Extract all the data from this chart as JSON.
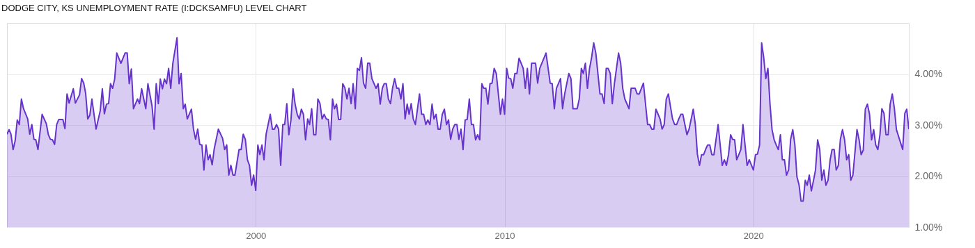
{
  "chart_data": {
    "type": "area",
    "title": "DODGE CITY, KS UNEMPLOYMENT RATE (I:DCKSAMFU) LEVEL CHART",
    "x": [
      "1990-01",
      "1990-02",
      "1990-03",
      "1990-04",
      "1990-05",
      "1990-06",
      "1990-07",
      "1990-08",
      "1990-09",
      "1990-11",
      "1990-12",
      "1991-01",
      "1991-02",
      "1991-03",
      "1991-04",
      "1991-06",
      "1991-08",
      "1991-09",
      "1991-10",
      "1991-11",
      "1991-12",
      "1992-01",
      "1992-02",
      "1992-04",
      "1992-05",
      "1992-06",
      "1992-07",
      "1992-09",
      "1992-10",
      "1992-12",
      "1993-01",
      "1993-02",
      "1993-03",
      "1993-04",
      "1993-05",
      "1993-06",
      "1993-08",
      "1993-10",
      "1993-11",
      "1993-12",
      "1994-01",
      "1994-02",
      "1994-03",
      "1994-04",
      "1994-05",
      "1994-06",
      "1994-08",
      "1994-10",
      "1994-11",
      "1994-12",
      "1995-01",
      "1995-02",
      "1995-04",
      "1995-05",
      "1995-06",
      "1995-08",
      "1995-09",
      "1995-11",
      "1995-12",
      "1996-01",
      "1996-02",
      "1996-03",
      "1996-04",
      "1996-05",
      "1996-06",
      "1996-07",
      "1996-08",
      "1996-09",
      "1996-11",
      "1996-12",
      "1997-01",
      "1997-02",
      "1997-03",
      "1997-04",
      "1997-06",
      "1997-07",
      "1997-08",
      "1997-09",
      "1997-10",
      "1997-11",
      "1997-12",
      "1998-01",
      "1998-02",
      "1998-03",
      "1998-04",
      "1998-05",
      "1998-07",
      "1998-09",
      "1998-10",
      "1998-11",
      "1998-12",
      "1999-01",
      "1999-02",
      "1999-03",
      "1999-05",
      "1999-06",
      "1999-07",
      "1999-08",
      "1999-09",
      "1999-10",
      "1999-11",
      "1999-12",
      "2000-01",
      "2000-02",
      "2000-03",
      "2000-04",
      "2000-05",
      "2000-06",
      "2000-08",
      "2000-09",
      "2000-10",
      "2000-11",
      "2000-12",
      "2001-01",
      "2001-02",
      "2001-03",
      "2001-04",
      "2001-05",
      "2001-06",
      "2001-07",
      "2001-08",
      "2001-09",
      "2001-10",
      "2001-11",
      "2001-12",
      "2002-01",
      "2002-02",
      "2002-03",
      "2002-04",
      "2002-05",
      "2002-06",
      "2002-07",
      "2002-08",
      "2002-09",
      "2002-10",
      "2002-11",
      "2002-12",
      "2003-01",
      "2003-02",
      "2003-03",
      "2003-04",
      "2003-05",
      "2003-06",
      "2003-07",
      "2003-08",
      "2003-09",
      "2003-10",
      "2003-11",
      "2003-12",
      "2004-01",
      "2004-02",
      "2004-03",
      "2004-04",
      "2004-05",
      "2004-06",
      "2004-07",
      "2004-08",
      "2004-09",
      "2004-11",
      "2004-12",
      "2005-01",
      "2005-02",
      "2005-03",
      "2005-04",
      "2005-05",
      "2005-06",
      "2005-07",
      "2005-08",
      "2005-09",
      "2005-10",
      "2005-11",
      "2005-12",
      "2006-01",
      "2006-02",
      "2006-03",
      "2006-04",
      "2006-05",
      "2006-06",
      "2006-08",
      "2006-09",
      "2006-10",
      "2006-11",
      "2006-12",
      "2007-01",
      "2007-02",
      "2007-03",
      "2007-04",
      "2007-05",
      "2007-06",
      "2007-07",
      "2007-08",
      "2007-09",
      "2007-10",
      "2007-11",
      "2007-12",
      "2008-01",
      "2008-02",
      "2008-03",
      "2008-04",
      "2008-05",
      "2008-06",
      "2008-07",
      "2008-08",
      "2008-09",
      "2008-10",
      "2008-11",
      "2008-12",
      "2009-01",
      "2009-02",
      "2009-03",
      "2009-04",
      "2009-05",
      "2009-06",
      "2009-07",
      "2009-08",
      "2009-09",
      "2009-10",
      "2009-11",
      "2009-12",
      "2010-01",
      "2010-02",
      "2010-03",
      "2010-04",
      "2010-05",
      "2010-06",
      "2010-07",
      "2010-08",
      "2010-09",
      "2010-10",
      "2010-11",
      "2010-12",
      "2011-01",
      "2011-02",
      "2011-04",
      "2011-05",
      "2011-06",
      "2011-09",
      "2011-11",
      "2011-12",
      "2012-01",
      "2012-02",
      "2012-04",
      "2012-05",
      "2012-06",
      "2012-08",
      "2012-09",
      "2012-10",
      "2012-12",
      "2013-01",
      "2013-02",
      "2013-03",
      "2013-04",
      "2013-05",
      "2013-06",
      "2013-07",
      "2013-08",
      "2013-09",
      "2013-11",
      "2013-12",
      "2014-01",
      "2014-02",
      "2014-03",
      "2014-04",
      "2014-05",
      "2014-06",
      "2014-08",
      "2014-09",
      "2014-10",
      "2014-11",
      "2015-01",
      "2015-02",
      "2015-04",
      "2015-05",
      "2015-06",
      "2015-08",
      "2015-10",
      "2015-11",
      "2015-12",
      "2016-01",
      "2016-02",
      "2016-04",
      "2016-05",
      "2016-06",
      "2016-07",
      "2016-08",
      "2016-10",
      "2016-11",
      "2016-12",
      "2017-01",
      "2017-02",
      "2017-03",
      "2017-05",
      "2017-06",
      "2017-08",
      "2017-09",
      "2017-10",
      "2017-11",
      "2017-12",
      "2018-01",
      "2018-02",
      "2018-03",
      "2018-04",
      "2018-05",
      "2018-06",
      "2018-08",
      "2018-10",
      "2018-11",
      "2018-12",
      "2019-01",
      "2019-02",
      "2019-03",
      "2019-04",
      "2019-05",
      "2019-06",
      "2019-07",
      "2019-08",
      "2019-10",
      "2019-11",
      "2020-01",
      "2020-02",
      "2020-03",
      "2020-04",
      "2020-05",
      "2020-06",
      "2020-07",
      "2020-08",
      "2020-09",
      "2020-10",
      "2020-11",
      "2020-12",
      "2021-01",
      "2021-02",
      "2021-03",
      "2021-04",
      "2021-05",
      "2021-06",
      "2021-07",
      "2021-08",
      "2021-09",
      "2021-10",
      "2021-11",
      "2021-12",
      "2022-01",
      "2022-02",
      "2022-03",
      "2022-04",
      "2022-05",
      "2022-06",
      "2022-07",
      "2022-08",
      "2022-09",
      "2022-10",
      "2022-11",
      "2022-12",
      "2023-01",
      "2023-02",
      "2023-03",
      "2023-04",
      "2023-05",
      "2023-06",
      "2023-07",
      "2023-08",
      "2023-09",
      "2023-10",
      "2023-11",
      "2023-12",
      "2024-01",
      "2024-03",
      "2024-04",
      "2024-05",
      "2024-06",
      "2024-07",
      "2024-08",
      "2024-09",
      "2024-10",
      "2024-11",
      "2024-12",
      "2025-01",
      "2025-02",
      "2025-03",
      "2025-04",
      "2025-05",
      "2025-06",
      "2025-07",
      "2025-08",
      "2025-09",
      "2025-10",
      "2026-01",
      "2026-02",
      "2026-03",
      "2026-04"
    ],
    "series": [
      {
        "color": "#6633cc",
        "values": [
          2.82,
          2.91,
          2.82,
          2.52,
          2.69,
          3.1,
          3.01,
          3.51,
          3.32,
          3.12,
          2.82,
          3.01,
          2.72,
          2.71,
          2.52,
          3.21,
          3.03,
          2.81,
          2.72,
          2.71,
          2.62,
          3.01,
          3.11,
          3.11,
          2.93,
          3.61,
          3.43,
          3.71,
          3.43,
          3.59,
          3.91,
          3.82,
          3.62,
          3.12,
          3.19,
          3.51,
          2.92,
          3.28,
          3.71,
          3.22,
          3.41,
          3.42,
          3.81,
          3.72,
          3.9,
          4.41,
          4.21,
          4.41,
          4.41,
          3.81,
          4.1,
          3.32,
          3.51,
          3.42,
          3.71,
          3.32,
          3.81,
          3.37,
          2.92,
          3.81,
          3.42,
          3.9,
          3.71,
          3.9,
          3.81,
          4.11,
          3.72,
          4.21,
          4.71,
          3.81,
          4.01,
          3.32,
          3.41,
          3.12,
          3.31,
          2.92,
          2.72,
          2.92,
          2.62,
          2.61,
          2.12,
          2.61,
          2.32,
          2.42,
          2.22,
          2.53,
          2.92,
          2.74,
          2.52,
          2.61,
          2.02,
          2.21,
          2.02,
          2.02,
          2.52,
          2.52,
          2.82,
          2.72,
          2.32,
          2.21,
          1.82,
          2.02,
          1.72,
          2.61,
          2.42,
          2.61,
          2.32,
          2.82,
          3.21,
          2.92,
          2.92,
          3.01,
          2.92,
          2.21,
          3.01,
          3.01,
          3.42,
          2.81,
          3.1,
          3.71,
          3.41,
          3.21,
          3.12,
          3.31,
          3.21,
          2.71,
          3.12,
          3.01,
          3.32,
          2.81,
          2.81,
          3.51,
          3.42,
          3.12,
          3.21,
          3.12,
          3.11,
          2.71,
          3.51,
          3.32,
          3.41,
          3.11,
          3.11,
          3.81,
          3.73,
          3.51,
          3.72,
          3.42,
          3.81,
          3.32,
          4.11,
          4.07,
          4.32,
          3.82,
          3.72,
          4.21,
          4.21,
          3.91,
          3.72,
          3.81,
          3.41,
          3.72,
          3.81,
          3.81,
          3.51,
          3.42,
          3.72,
          3.91,
          3.72,
          3.72,
          3.51,
          3.81,
          3.12,
          3.41,
          3.21,
          3.42,
          3.12,
          3.01,
          3.61,
          3.21,
          3.21,
          3.01,
          3.1,
          3.01,
          3.41,
          3.12,
          3.21,
          2.92,
          2.92,
          3.21,
          3.31,
          3.01,
          3.1,
          2.72,
          2.92,
          3.01,
          3.01,
          2.72,
          2.92,
          2.52,
          3.1,
          3.11,
          3.51,
          3.01,
          3.01,
          2.71,
          2.81,
          2.71,
          3.81,
          3.72,
          3.72,
          3.41,
          3.81,
          3.82,
          4.11,
          4.01,
          3.61,
          3.21,
          3.51,
          3.21,
          4.11,
          3.92,
          3.91,
          3.72,
          4.01,
          4.01,
          4.31,
          4.21,
          4.11,
          3.72,
          4.11,
          3.61,
          4.21,
          4.21,
          3.82,
          4.11,
          4.41,
          3.82,
          3.81,
          3.32,
          3.72,
          3.91,
          3.32,
          3.61,
          4.01,
          3.91,
          3.32,
          3.32,
          3.51,
          4.11,
          4.01,
          4.21,
          3.72,
          4.11,
          4.32,
          4.61,
          4.41,
          3.61,
          3.61,
          3.42,
          4.11,
          4.11,
          4.01,
          3.42,
          3.81,
          4.41,
          4.21,
          3.72,
          3.51,
          3.32,
          3.72,
          3.72,
          3.61,
          3.61,
          3.82,
          3.01,
          3.01,
          2.92,
          2.92,
          3.31,
          3.12,
          2.92,
          3.01,
          3.51,
          3.61,
          3.12,
          3.01,
          3.01,
          3.12,
          3.21,
          3.21,
          2.81,
          2.92,
          3.31,
          3.01,
          2.43,
          2.21,
          2.42,
          2.42,
          2.53,
          2.61,
          2.61,
          2.42,
          2.42,
          3.01,
          2.21,
          2.32,
          2.21,
          2.42,
          2.81,
          2.72,
          2.71,
          2.32,
          2.42,
          2.52,
          3.01,
          2.21,
          2.32,
          2.12,
          2.42,
          2.43,
          2.61,
          4.61,
          4.32,
          3.91,
          4.11,
          3.41,
          2.91,
          2.71,
          2.61,
          2.52,
          2.81,
          2.32,
          2.32,
          2.02,
          2.12,
          2.72,
          2.91,
          2.61,
          1.99,
          1.83,
          1.51,
          1.51,
          1.92,
          1.82,
          2.02,
          1.71,
          1.91,
          2.12,
          2.71,
          2.52,
          1.92,
          2.12,
          1.82,
          1.92,
          2.32,
          2.52,
          2.52,
          2.12,
          2.21,
          2.72,
          2.91,
          2.71,
          2.32,
          2.42,
          1.92,
          2.02,
          2.91,
          2.71,
          2.42,
          2.51,
          3.31,
          3.41,
          3.21,
          2.71,
          2.91,
          2.61,
          2.52,
          2.81,
          3.32,
          3.23,
          2.81,
          2.81,
          3.41,
          3.61,
          3.32,
          2.91,
          2.52,
          3.23,
          3.31,
          2.92
        ]
      }
    ],
    "xlim": [
      "1990-01",
      "2026-04"
    ],
    "xticks": [
      {
        "value": "2000",
        "label": "2000"
      },
      {
        "value": "2010",
        "label": "2010"
      },
      {
        "value": "2020",
        "label": "2020"
      }
    ],
    "ylim": [
      1,
      5
    ],
    "yticks": [
      {
        "value": 1,
        "label": "1.00%"
      },
      {
        "value": 2,
        "label": "2.00%"
      },
      {
        "value": 3,
        "label": "3.00%"
      },
      {
        "value": 4,
        "label": "4.00%"
      }
    ],
    "grid": true
  }
}
